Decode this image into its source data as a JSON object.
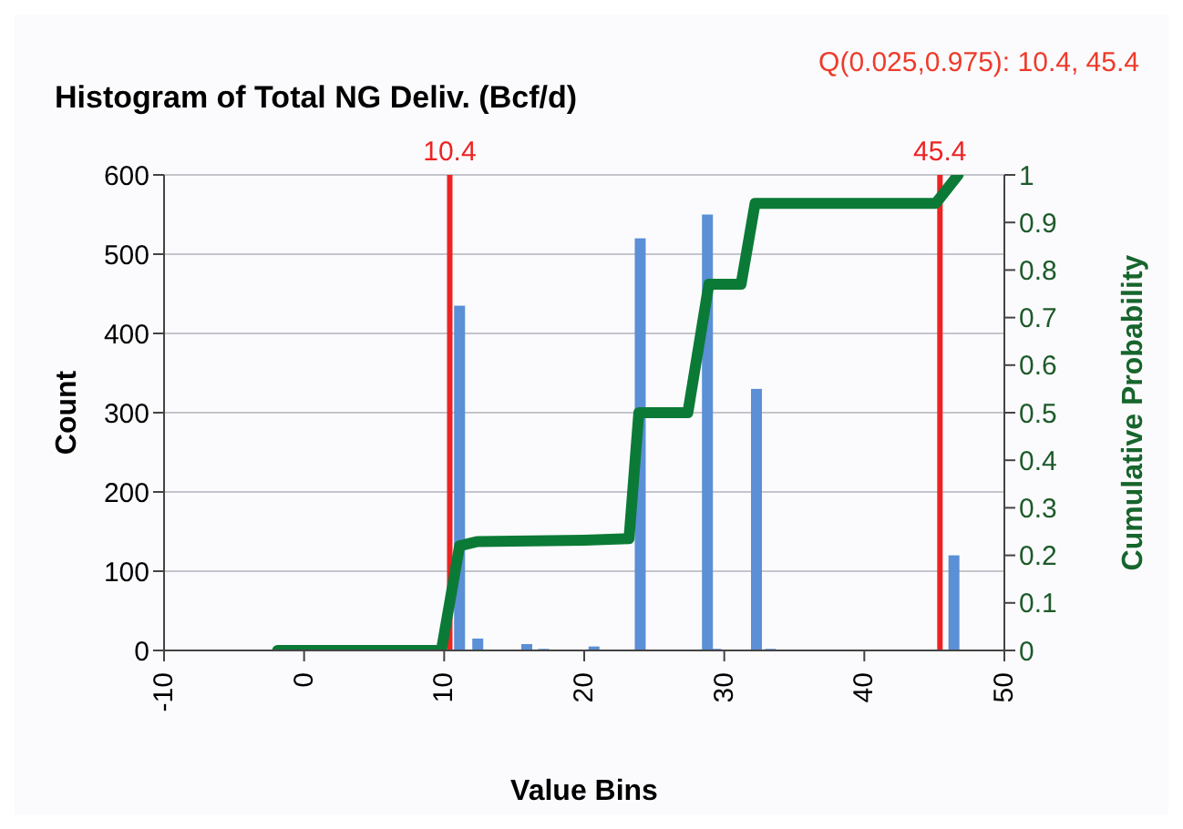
{
  "chart_data": {
    "type": "bar",
    "title": "Histogram of Total NG Deliv. (Bcf/d)",
    "xlabel": "Value Bins",
    "ylabel": "Count",
    "y2label": "Cumulative Probability",
    "annotations": [
      "Q(0.025,0.975): 10.4, 45.4"
    ],
    "series": [
      {
        "color": "#5b8fd6",
        "x": [
          11.1,
          12.4,
          15.9,
          17.1,
          20.7,
          24.0,
          28.8,
          29.4,
          32.3,
          33.3,
          46.4
        ],
        "values": [
          435,
          15,
          8,
          2,
          5,
          520,
          550,
          2,
          330,
          2,
          120
        ]
      },
      {
        "type": "line",
        "axis": "y2",
        "color": "#0b7a36",
        "x": [
          -1.9,
          9.8,
          11.1,
          12.4,
          20.0,
          23.2,
          23.9,
          27.4,
          28.9,
          31.2,
          32.2,
          45.1,
          46.7
        ],
        "values": [
          0,
          0,
          0.22,
          0.229,
          0.232,
          0.235,
          0.5,
          0.5,
          0.77,
          0.77,
          0.94,
          0.94,
          1
        ]
      }
    ],
    "xlim": [
      -10,
      50
    ],
    "xticks": [
      -10,
      0,
      10,
      20,
      30,
      40,
      50
    ],
    "ylim": [
      0,
      600
    ],
    "yticks": [
      0,
      100,
      200,
      300,
      400,
      500,
      600
    ],
    "y2lim": [
      0,
      1
    ],
    "y2ticks": [
      0,
      0.1,
      0.2,
      0.3,
      0.4,
      0.5,
      0.6,
      0.7,
      0.8,
      0.9,
      1
    ],
    "ref_lines": [
      {
        "axis": "x",
        "value": 10.4,
        "label": "10.4",
        "color": "#ee2222"
      },
      {
        "axis": "x",
        "value": 45.4,
        "label": "45.4",
        "color": "#ee2222"
      }
    ],
    "grid": "y"
  }
}
